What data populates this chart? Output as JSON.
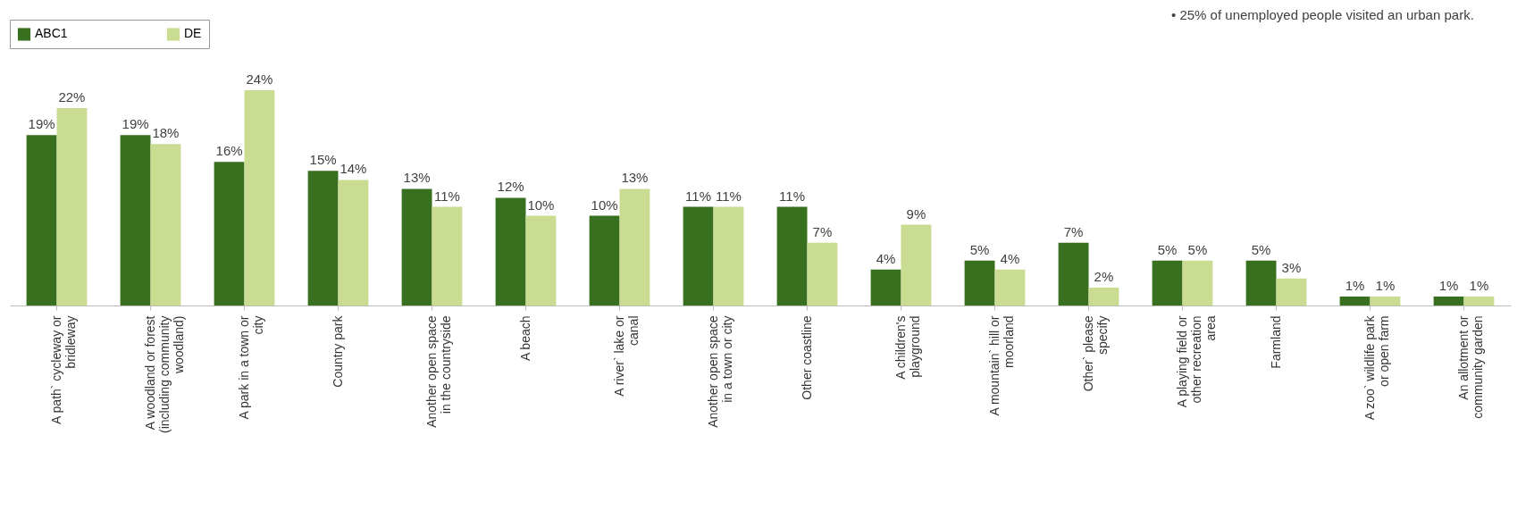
{
  "chart_data": {
    "type": "bar",
    "legend": "top",
    "grid": false,
    "categories": [
      "A path` cycleway or bridleway",
      "A woodland or forest (including community woodland)",
      "A park in a town or city",
      "Country park",
      "Another open space in the countryside",
      "A beach",
      "A river` lake or canal",
      "Another open space in a town or city",
      "Other coastline",
      "A children's playground",
      "A mountain` hill or moorland",
      "Other` please specify",
      "A playing field or other recreation area",
      "Farmland",
      "A zoo` wildlife park or open farm",
      "An allotment or community garden"
    ],
    "series": [
      {
        "name": "ABC1",
        "color": "#38701f",
        "values": [
          19,
          19,
          16,
          15,
          13,
          12,
          10,
          11,
          11,
          4,
          5,
          7,
          5,
          5,
          1,
          1
        ],
        "value_labels": [
          "19%",
          "19%",
          "16%",
          "15%",
          "13%",
          "12%",
          "10%",
          "11%",
          "11%",
          "4%",
          "5%",
          "7%",
          "5%",
          "5%",
          "1%",
          "1%"
        ]
      },
      {
        "name": "DE",
        "color": "#c9dc92",
        "values": [
          22,
          18,
          24,
          14,
          11,
          10,
          13,
          11,
          7,
          9,
          4,
          2,
          5,
          3,
          1,
          1
        ],
        "value_labels": [
          "22%",
          "18%",
          "24%",
          "14%",
          "11%",
          "10%",
          "13%",
          "11%",
          "7%",
          "9%",
          "4%",
          "2%",
          "5%",
          "3%",
          "1%",
          "1%"
        ]
      }
    ],
    "annotations": [
      "•  25% of unemployed people visited an urban park."
    ]
  }
}
